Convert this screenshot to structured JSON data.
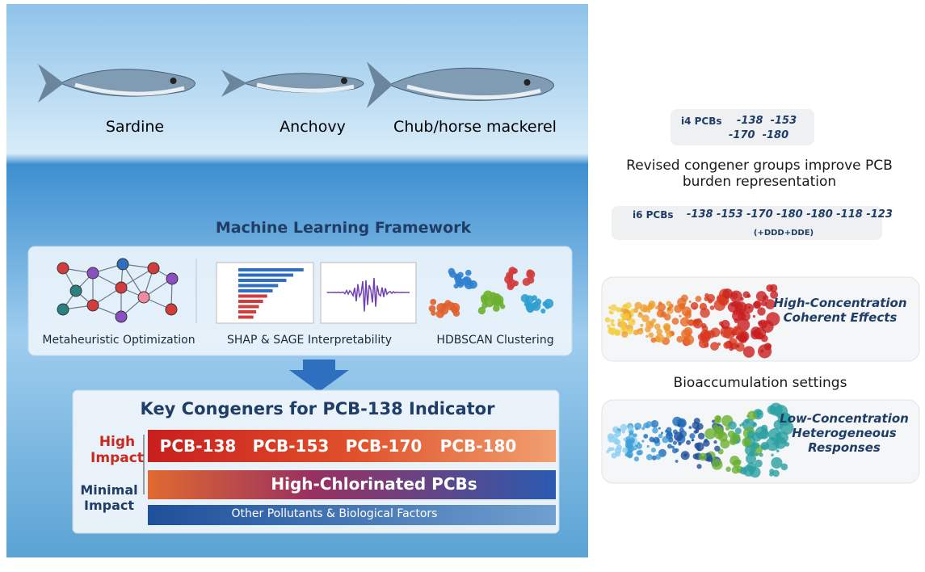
{
  "fish": [
    {
      "label": "Sardine"
    },
    {
      "label": "Anchovy"
    },
    {
      "label": "Chub/horse mackerel"
    }
  ],
  "framework": {
    "title": "Machine Learning Framework",
    "methods": [
      "Metaheuristic Optimization",
      "SHAP & SAGE Interpretability",
      "HDBSCAN Clustering"
    ]
  },
  "key_congeners": {
    "title": "Key Congeners for PCB-138 Indicator",
    "high_impact": "High Impact",
    "minimal_impact": "Minimal Impact",
    "congeners": [
      "PCB-138",
      "PCB-153",
      "PCB-170",
      "PCB-180"
    ],
    "high_chlorinated": "High-Chlorinated PCBs",
    "other": "Other Pollutants & Biological Factors"
  },
  "indicators": {
    "i4": {
      "label": "i4 PCBs",
      "line1": "-138  -153",
      "line2": "-170  -180"
    },
    "note": "Revised congener groups improve PCB burden representation",
    "i6": {
      "label": "i6 PCBs",
      "congeners": "-138 -153 -170 -180 -180 -118 -123",
      "extra": "(+DDD+DDE)"
    }
  },
  "effects": {
    "high": "High-Concentration Coherent Effects",
    "settings": "Bioaccumulation settings",
    "low": "Low-Concentration Heterogeneous Responses"
  }
}
